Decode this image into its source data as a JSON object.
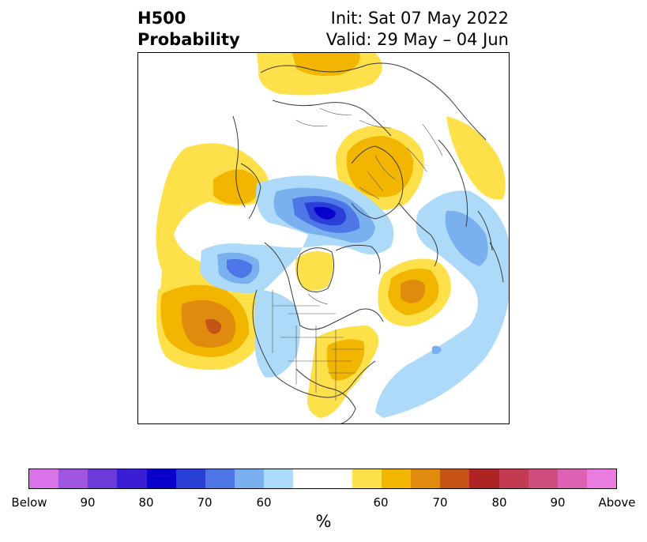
{
  "header": {
    "field": "H500",
    "product": "Probability",
    "init": "Init: Sat 07 May 2022",
    "valid": "Valid: 29 May – 04 Jun"
  },
  "colorbar": {
    "unit": "%",
    "colors": [
      "#d874e8",
      "#9e55e0",
      "#6b3ad9",
      "#3a1ed6",
      "#0a00cc",
      "#2a3fd6",
      "#4f76e6",
      "#7ab0ef",
      "#acdaf8",
      "#ffffff",
      "#ffffff",
      "#fde04a",
      "#f2b600",
      "#e08a0e",
      "#c65317",
      "#ae2424",
      "#c23b53",
      "#cf4e80",
      "#de62b4",
      "#ea7cdf"
    ],
    "labels": [
      "Below",
      "90",
      "80",
      "70",
      "60",
      "60",
      "70",
      "80",
      "90",
      "Above"
    ]
  },
  "map": {
    "colors": {
      "ocean": "#ffffff",
      "coast": "#3a3a3a",
      "border": "#555555",
      "below_60": "#acdaf8",
      "below_70": "#7ab0ef",
      "below_80": "#4f76e6",
      "below_90": "#2a3fd6",
      "below_max": "#0a00cc",
      "above_60": "#fde04a",
      "above_70": "#f2b600",
      "above_80": "#e08a0e",
      "above_90": "#c65317"
    }
  }
}
